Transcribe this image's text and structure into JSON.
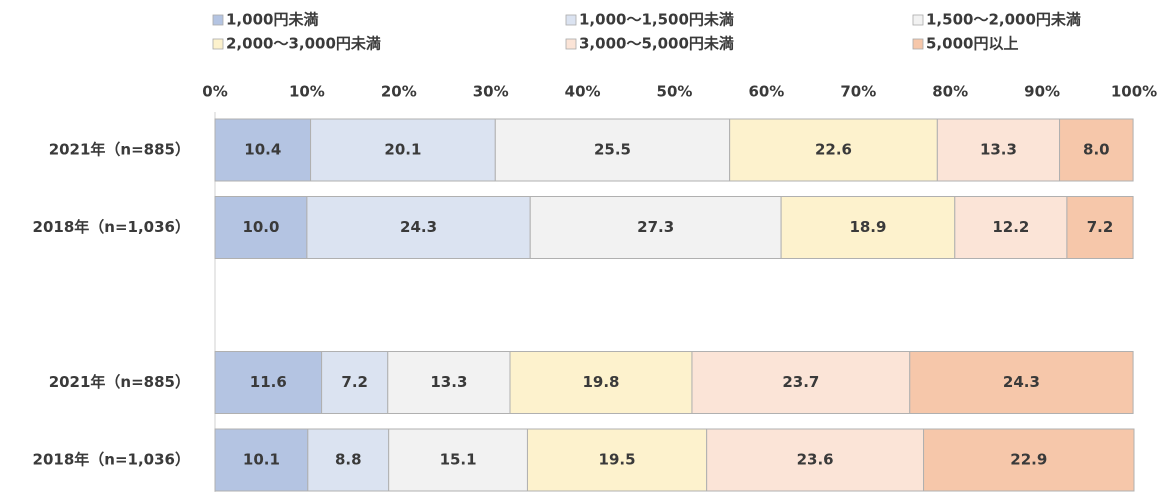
{
  "chart_data": {
    "type": "stacked_bar_horizontal",
    "categories": [
      "2021年（n=885）",
      "2018年（n=1,036）",
      null,
      "2021年（n=885）",
      "2018年（n=1,036）"
    ],
    "xlim": [
      0,
      100
    ],
    "xticks": [
      {
        "value": 0,
        "label": "0%"
      },
      {
        "value": 10,
        "label": "10%"
      },
      {
        "value": 20,
        "label": "20%"
      },
      {
        "value": 30,
        "label": "30%"
      },
      {
        "value": 40,
        "label": "40%"
      },
      {
        "value": 50,
        "label": "50%"
      },
      {
        "value": 60,
        "label": "60%"
      },
      {
        "value": 70,
        "label": "70%"
      },
      {
        "value": 80,
        "label": "80%"
      },
      {
        "value": 90,
        "label": "90%"
      },
      {
        "value": 100,
        "label": "100%"
      }
    ],
    "legend": "top",
    "series": [
      {
        "name": "1,000円未満",
        "color": "#b4c4e2",
        "values": [
          10.4,
          10.0,
          null,
          11.6,
          10.1
        ],
        "value_labels": [
          "10.4",
          "10.0",
          null,
          "11.6",
          "10.1"
        ]
      },
      {
        "name": "1,000～1,500円未満",
        "color": "#dbe3f1",
        "values": [
          20.1,
          24.3,
          null,
          7.2,
          8.8
        ],
        "value_labels": [
          "20.1",
          "24.3",
          null,
          "7.2",
          "8.8"
        ]
      },
      {
        "name": "1,500～2,000円未満",
        "color": "#f2f2f2",
        "values": [
          25.5,
          27.3,
          null,
          13.3,
          15.1
        ],
        "value_labels": [
          "25.5",
          "27.3",
          null,
          "13.3",
          "15.1"
        ]
      },
      {
        "name": "2,000～3,000円未満",
        "color": "#fdf2cd",
        "values": [
          22.6,
          18.9,
          null,
          19.8,
          19.5
        ],
        "value_labels": [
          "22.6",
          "18.9",
          null,
          "19.8",
          "19.5"
        ]
      },
      {
        "name": "3,000～5,000円未満",
        "color": "#fbe4d7",
        "values": [
          13.3,
          12.2,
          null,
          23.7,
          23.6
        ],
        "value_labels": [
          "13.3",
          "12.2",
          null,
          "23.7",
          "23.6"
        ]
      },
      {
        "name": "5,000円以上",
        "color": "#f6c7aa",
        "values": [
          8.0,
          7.2,
          null,
          24.3,
          22.9
        ],
        "value_labels": [
          "8.0",
          "7.2",
          null,
          "24.3",
          "22.9"
        ]
      }
    ]
  }
}
